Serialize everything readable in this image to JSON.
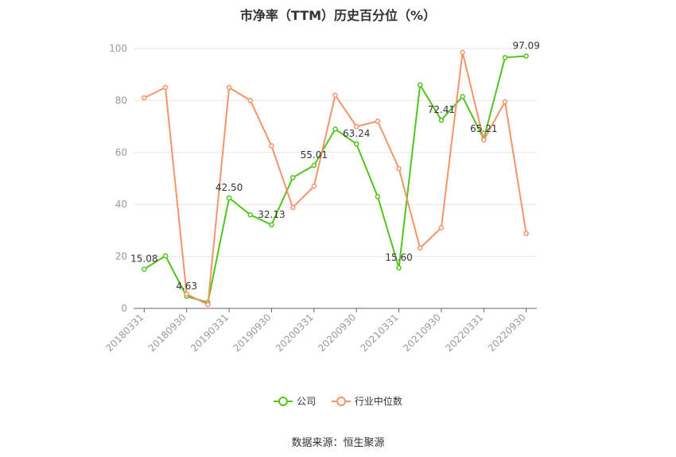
{
  "chart_data": {
    "type": "line",
    "title": "市净率（TTM）历史百分位（%）",
    "x": [
      "20180331",
      "20180630",
      "20180930",
      "20181231",
      "20190331",
      "20190630",
      "20190930",
      "20191231",
      "20200331",
      "20200630",
      "20200930",
      "20201231",
      "20210331",
      "20210630",
      "20210930",
      "20211231",
      "20220331",
      "20220630",
      "20220930"
    ],
    "x_tick_labels": [
      "20180331",
      "20180930",
      "20190331",
      "20190930",
      "20200331",
      "20200930",
      "20210331",
      "20210930",
      "20220331",
      "20220930"
    ],
    "y_ticks": [
      "0",
      "20",
      "40",
      "60",
      "80",
      "100"
    ],
    "ylim": [
      0,
      100
    ],
    "grid": true,
    "legend_position": "bottom",
    "series": [
      {
        "name": "公司",
        "color": "#52c41a",
        "values": [
          15.08,
          20.2,
          4.63,
          2.3,
          42.5,
          36.0,
          32.13,
          50.3,
          55.01,
          69.0,
          63.24,
          43.0,
          15.6,
          86.0,
          72.41,
          81.5,
          65.21,
          96.5,
          97.09
        ],
        "data_labels": [
          {
            "index": 0,
            "text": "15.08"
          },
          {
            "index": 2,
            "text": "4.63"
          },
          {
            "index": 4,
            "text": "42.50"
          },
          {
            "index": 6,
            "text": "32.13"
          },
          {
            "index": 8,
            "text": "55.01"
          },
          {
            "index": 10,
            "text": "63.24"
          },
          {
            "index": 12,
            "text": "15.60"
          },
          {
            "index": 14,
            "text": "72.41"
          },
          {
            "index": 16,
            "text": "65.21"
          },
          {
            "index": 18,
            "text": "97.09"
          }
        ]
      },
      {
        "name": "行业中位数",
        "color": "#f5936b",
        "values": [
          81.0,
          85.0,
          5.5,
          1.5,
          85.0,
          80.0,
          62.5,
          38.8,
          47.0,
          82.0,
          70.0,
          72.0,
          53.8,
          23.2,
          31.0,
          98.5,
          64.8,
          79.5,
          28.8
        ]
      }
    ]
  },
  "source": "数据来源：恒生聚源"
}
